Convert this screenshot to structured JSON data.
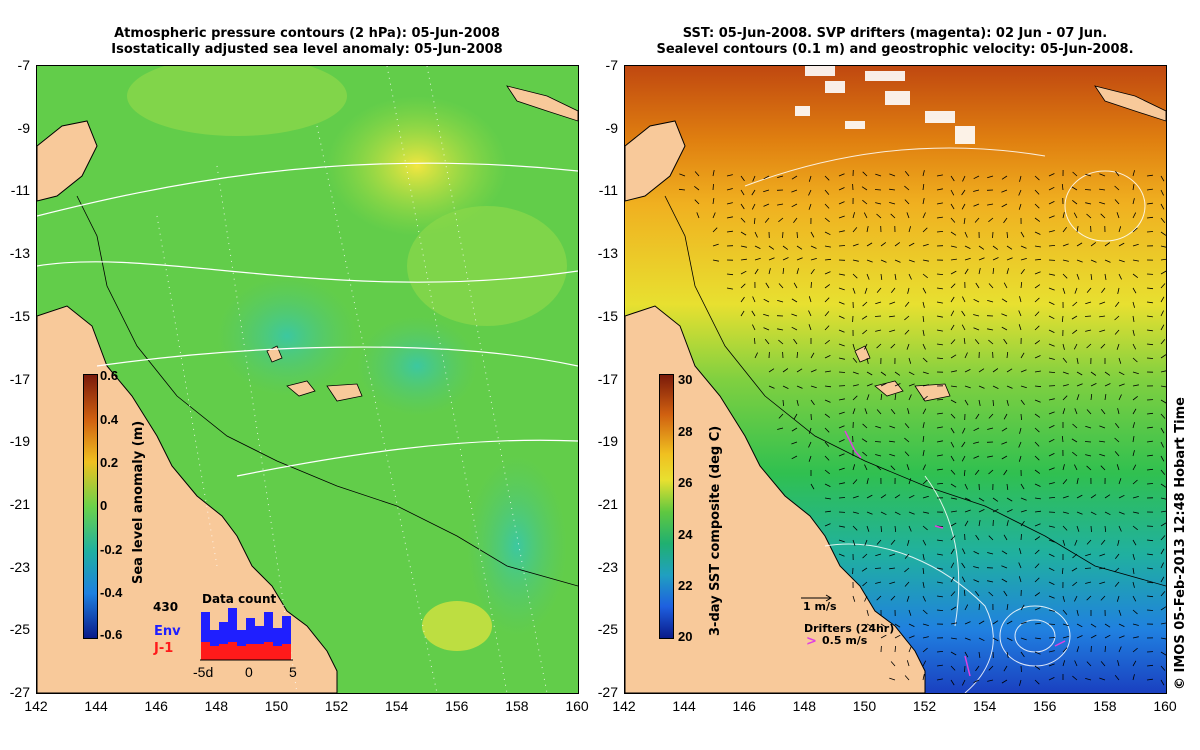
{
  "left_panel": {
    "title_line1": "Atmospheric pressure contours (2 hPa): 05-Jun-2008",
    "title_line2": "Isostatically adjusted sea level anomaly: 05-Jun-2008",
    "colorbar": {
      "label": "Sea level anomaly (m)",
      "ticks": [
        "0.6",
        "0.4",
        "0.2",
        "0",
        "-0.2",
        "-0.4",
        "-0.6"
      ]
    },
    "data_count": {
      "title": "Data count",
      "max_label": "430",
      "legend_env": "Env",
      "legend_j1": "J-1",
      "x_ticks": [
        "-5d",
        "0",
        "5"
      ],
      "env_color": "#1f1fff",
      "j1_color": "#ff1a1a"
    }
  },
  "right_panel": {
    "title_line1": "SST: 05-Jun-2008. SVP drifters (magenta): 02 Jun - 07 Jun.",
    "title_line2": "Sealevel contours (0.1 m) and geostrophic velocity: 05-Jun-2008.",
    "colorbar": {
      "label": "3-day SST composite (deg C)",
      "ticks": [
        "30",
        "28",
        "26",
        "24",
        "22",
        "20"
      ]
    },
    "velocity_scale_label": "1 m/s",
    "drifters_label": "Drifters (24hr)",
    "drifter_speed_label": "0.5 m/s",
    "drifter_symbol": ">",
    "drifter_color": "#e040e0"
  },
  "axes": {
    "y_ticks": [
      "-7",
      "-9",
      "-11",
      "-13",
      "-15",
      "-17",
      "-19",
      "-21",
      "-23",
      "-25",
      "-27"
    ],
    "x_ticks": [
      "142",
      "144",
      "146",
      "148",
      "150",
      "152",
      "154",
      "156",
      "158",
      "160"
    ]
  },
  "credit": "© IMOS 05-Feb-2013 12:48 Hobart Time",
  "colors": {
    "land": "#f8c99a",
    "sla_zero": "#6cd24a",
    "sst_warm": "#d04a10",
    "sst_cool": "#2060e0"
  }
}
